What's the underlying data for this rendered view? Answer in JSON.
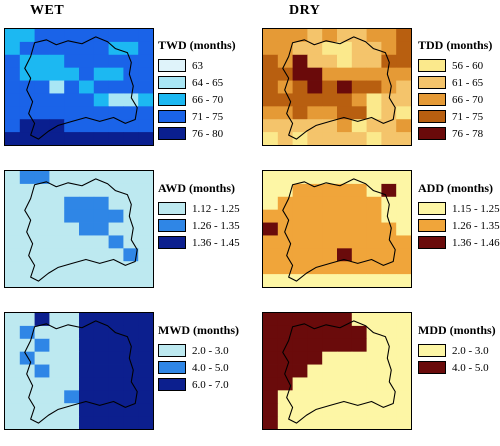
{
  "columns": {
    "wet": "WET",
    "dry": "DRY"
  },
  "panels": [
    {
      "id": "twd",
      "title": "TWD (months)",
      "legend": [
        {
          "label": "63",
          "color": "#dff3fa"
        },
        {
          "label": "64 - 65",
          "color": "#a9e6f5"
        },
        {
          "label": "66 - 70",
          "color": "#1cb8f2"
        },
        {
          "label": "71 - 75",
          "color": "#1a63e8"
        },
        {
          "label": "76 - 80",
          "color": "#0a1f8f"
        }
      ],
      "grid": [
        "2233333333",
        "2333333223",
        "3222333333",
        "3222232233",
        "3331323333",
        "3333332112",
        "3333333333",
        "3444333333",
        "4444444444"
      ]
    },
    {
      "id": "tdd",
      "title": "TDD (months)",
      "legend": [
        {
          "label": "56 - 60",
          "color": "#fbe98c"
        },
        {
          "label": "61 - 65",
          "color": "#f4c46b"
        },
        {
          "label": "66 - 70",
          "color": "#e59a36"
        },
        {
          "label": "71 - 75",
          "color": "#b85f10"
        },
        {
          "label": "76 - 78",
          "color": "#6a0a0a"
        }
      ],
      "grid": [
        "2221211223",
        "2211001123",
        "3241101133",
        "3344222222",
        "3234343321",
        "3333332011",
        "2232233010",
        "1111120112",
        "0101111011"
      ]
    },
    {
      "id": "awd",
      "title": "AWD (months)",
      "legend": [
        {
          "label": "1.12 - 1.25",
          "color": "#bde9f0"
        },
        {
          "label": "1.26 - 1.35",
          "color": "#2f86e6"
        },
        {
          "label": "1.36 - 1.45",
          "color": "#0c1f8e"
        }
      ],
      "grid": [
        "0110000000",
        "0000000000",
        "0000111000",
        "0000111100",
        "0000011000",
        "0000000100",
        "0000000010",
        "0000000000",
        "0000000000"
      ]
    },
    {
      "id": "add",
      "title": "ADD (months)",
      "legend": [
        {
          "label": "1.15 - 1.25",
          "color": "#fdf6a5"
        },
        {
          "label": "1.26 - 1.35",
          "color": "#f0a53a"
        },
        {
          "label": "1.36 - 1.46",
          "color": "#6a0b0b"
        }
      ],
      "grid": [
        "0000000000",
        "0011111020",
        "0111111100",
        "1111111100",
        "2111111110",
        "1111111111",
        "1111121111",
        "1111111111",
        "0000000000"
      ]
    },
    {
      "id": "mwd",
      "title": "MWD (months)",
      "legend": [
        {
          "label": "2.0 - 3.0",
          "color": "#bde9f0"
        },
        {
          "label": "4.0 - 5.0",
          "color": "#2f86e6"
        },
        {
          "label": "6.0 - 7.0",
          "color": "#0c1f8e"
        }
      ],
      "grid": [
        "0020022222",
        "0100022222",
        "0010022222",
        "0100022222",
        "0010022222",
        "0000022222",
        "0000122222",
        "0000022222",
        "0000022222"
      ]
    },
    {
      "id": "mdd",
      "title": "MDD (months)",
      "legend": [
        {
          "label": "2.0 - 3.0",
          "color": "#fdf6a5"
        },
        {
          "label": "4.0 - 5.0",
          "color": "#6a0b0b"
        }
      ],
      "grid": [
        "1111110000",
        "1111111000",
        "1111111000",
        "1111000000",
        "1110000000",
        "1100000000",
        "1000000000",
        "1000000000",
        "1000000000"
      ]
    }
  ]
}
